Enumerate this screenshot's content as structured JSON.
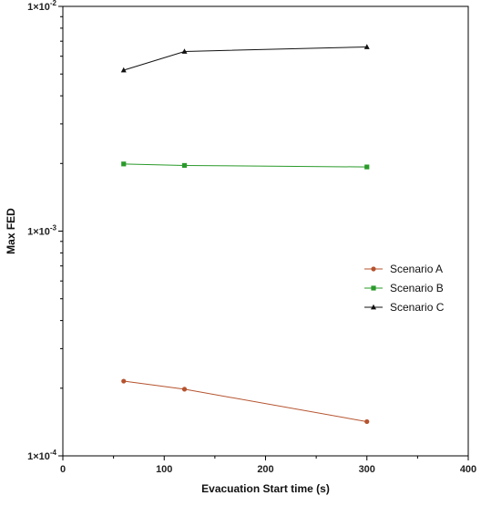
{
  "chart_data": {
    "type": "line",
    "xlabel": "Evacuation Start time (s)",
    "ylabel": "Max FED",
    "y_scale": "log",
    "xlim": [
      0,
      400
    ],
    "ylim": [
      0.0001,
      0.01
    ],
    "x_ticks": [
      0,
      100,
      200,
      300,
      400
    ],
    "x_tick_labels": [
      "0",
      "100",
      "200",
      "300",
      "400"
    ],
    "y_ticks": [
      0.01,
      0.001,
      0.0001
    ],
    "y_tick_labels": [
      {
        "base": "1×10",
        "exp": "-2"
      },
      {
        "base": "1×10",
        "exp": "-3"
      },
      {
        "base": "1×10",
        "exp": "-4"
      }
    ],
    "legend_position": "right",
    "grid": false,
    "series": [
      {
        "name": "Scenario A",
        "marker": "circle",
        "color": "#b5532e",
        "x": [
          60,
          120,
          300
        ],
        "y": [
          0.000215,
          0.000198,
          0.000142
        ]
      },
      {
        "name": "Scenario B",
        "marker": "square",
        "color": "#2a9a2a",
        "x": [
          60,
          120,
          300
        ],
        "y": [
          0.00199,
          0.00196,
          0.00193
        ]
      },
      {
        "name": "Scenario C",
        "marker": "triangle",
        "color": "#111111",
        "x": [
          60,
          120,
          300
        ],
        "y": [
          0.0052,
          0.0063,
          0.0066
        ]
      }
    ]
  }
}
